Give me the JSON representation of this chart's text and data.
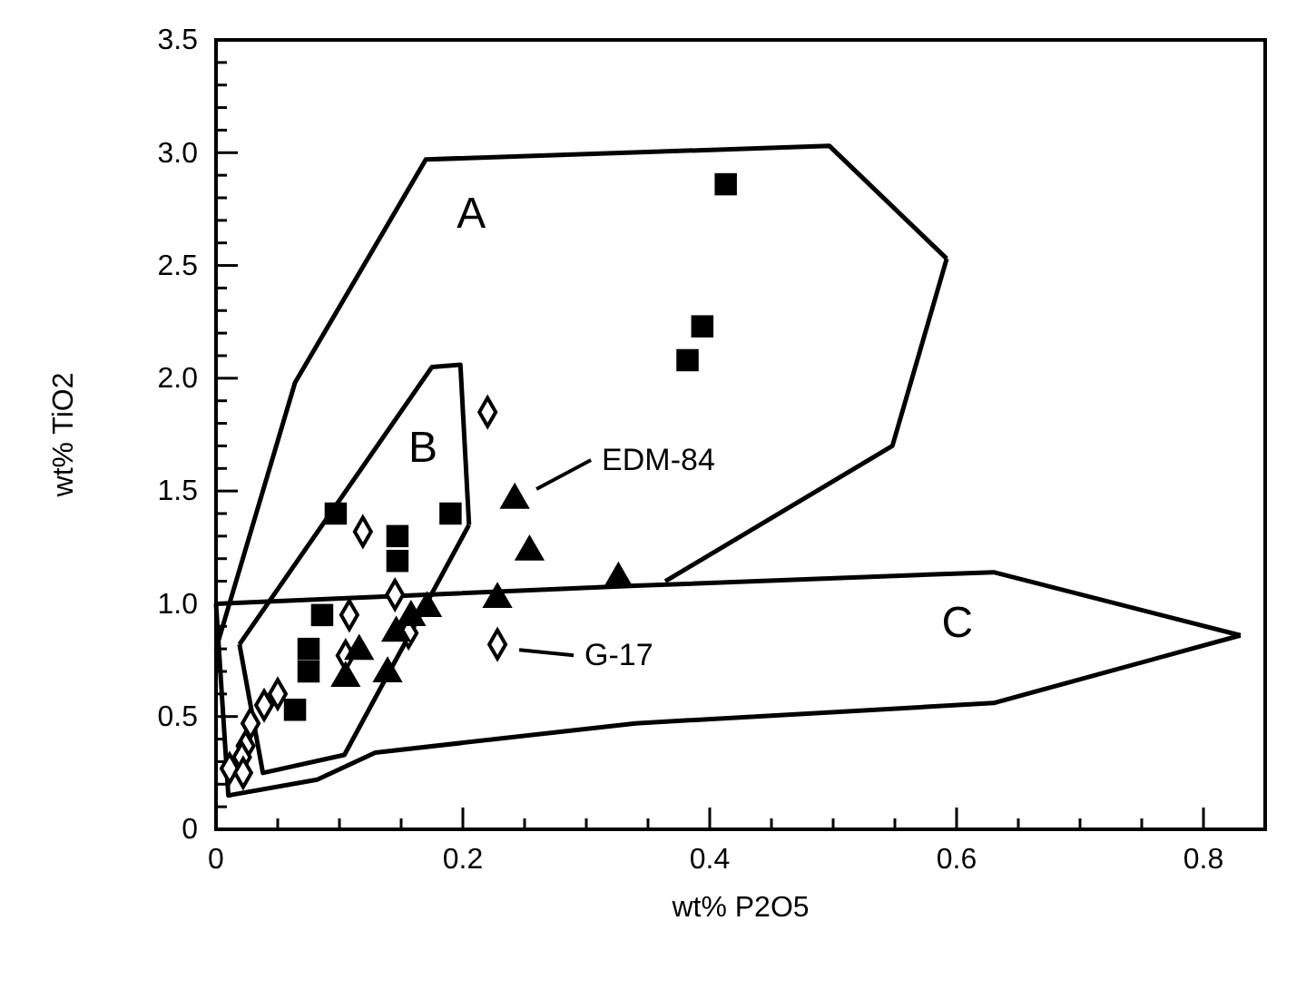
{
  "chart_data": {
    "type": "scatter",
    "xlabel": "wt% P2O5",
    "ylabel": "wt% TiO2",
    "xlim": [
      0,
      0.85
    ],
    "ylim": [
      0,
      3.5
    ],
    "xticks": [
      0,
      {
        "value": 0.05,
        "label": null
      },
      {
        "value": 0.1,
        "label": null
      },
      {
        "value": 0.15,
        "label": null
      },
      0.2,
      {
        "value": 0.25,
        "label": null
      },
      {
        "value": 0.3,
        "label": null
      },
      {
        "value": 0.35,
        "label": null
      },
      0.4,
      {
        "value": 0.45,
        "label": null
      },
      {
        "value": 0.5,
        "label": null
      },
      {
        "value": 0.55,
        "label": null
      },
      0.6,
      {
        "value": 0.65,
        "label": null
      },
      {
        "value": 0.7,
        "label": null
      },
      {
        "value": 0.75,
        "label": null
      },
      0.8
    ],
    "yticks": [
      0,
      {
        "value": 0.1,
        "label": null
      },
      {
        "value": 0.2,
        "label": null
      },
      {
        "value": 0.3,
        "label": null
      },
      {
        "value": 0.4,
        "label": null
      },
      0.5,
      {
        "value": 0.6,
        "label": null
      },
      {
        "value": 0.7,
        "label": null
      },
      {
        "value": 0.8,
        "label": null
      },
      {
        "value": 0.9,
        "label": null
      },
      {
        "value": 1,
        "label": "1.0"
      },
      {
        "value": 1.1,
        "label": null
      },
      {
        "value": 1.2,
        "label": null
      },
      {
        "value": 1.3,
        "label": null
      },
      {
        "value": 1.4,
        "label": null
      },
      1.5,
      {
        "value": 1.6,
        "label": null
      },
      {
        "value": 1.7,
        "label": null
      },
      {
        "value": 1.8,
        "label": null
      },
      {
        "value": 1.9,
        "label": null
      },
      {
        "value": 2,
        "label": "2.0"
      },
      {
        "value": 2.1,
        "label": null
      },
      {
        "value": 2.2,
        "label": null
      },
      {
        "value": 2.3,
        "label": null
      },
      {
        "value": 2.4,
        "label": null
      },
      2.5,
      {
        "value": 2.6,
        "label": null
      },
      {
        "value": 2.7,
        "label": null
      },
      {
        "value": 2.8,
        "label": null
      },
      {
        "value": 2.9,
        "label": null
      },
      {
        "value": 3,
        "label": "3.0"
      },
      {
        "value": 3.1,
        "label": null
      },
      {
        "value": 3.2,
        "label": null
      },
      {
        "value": 3.3,
        "label": null
      },
      {
        "value": 3.4,
        "label": null
      },
      3.5
    ],
    "grid": false,
    "series": [
      {
        "type": "line",
        "marker": "none",
        "color": "#000000",
        "x": [
          0,
          0.064,
          0.17,
          0.497,
          0.592
        ],
        "values": [
          0.8,
          1.98,
          2.97,
          3.03,
          2.53
        ]
      },
      {
        "type": "line",
        "marker": "none",
        "color": "#000000",
        "x": [
          0.364,
          0.548,
          0.592
        ],
        "values": [
          1.1,
          1.7,
          2.53
        ]
      },
      {
        "type": "line",
        "marker": "none",
        "color": "#000000",
        "x": [
          0.019,
          0.175,
          0.198,
          0.205
        ],
        "values": [
          0.82,
          2.05,
          2.06,
          1.35
        ]
      },
      {
        "type": "line",
        "marker": "none",
        "color": "#000000",
        "x": [
          0.019,
          0.038,
          0.104,
          0.205
        ],
        "values": [
          0.82,
          0.25,
          0.33,
          1.35
        ]
      },
      {
        "type": "line",
        "marker": "none",
        "color": "#000000",
        "x": [
          0,
          0.34,
          0.63,
          0.83
        ],
        "values": [
          1.0,
          1.08,
          1.14,
          0.86
        ]
      },
      {
        "type": "line",
        "marker": "none",
        "color": "#000000",
        "x": [
          0,
          0.01,
          0.082,
          0.129,
          0.34,
          0.63,
          0.83
        ],
        "values": [
          1.0,
          0.15,
          0.22,
          0.34,
          0.47,
          0.56,
          0.86
        ]
      },
      {
        "marker": "square",
        "color": "#000000",
        "x": [
          0.097,
          0.19,
          0.147,
          0.147,
          0.086,
          0.075,
          0.075,
          0.064,
          0.413,
          0.394,
          0.382
        ],
        "values": [
          1.4,
          1.4,
          1.3,
          1.19,
          0.95,
          0.8,
          0.7,
          0.53,
          2.86,
          2.23,
          2.08
        ]
      },
      {
        "marker": "diamond",
        "color": "#000000",
        "x": [
          0.22,
          0.119,
          0.145,
          0.108,
          0.105,
          0.156,
          0.228,
          0.05,
          0.039,
          0.028,
          0.024,
          0.021,
          0.011,
          0.022
        ],
        "values": [
          1.85,
          1.32,
          1.04,
          0.95,
          0.77,
          0.87,
          0.82,
          0.6,
          0.55,
          0.47,
          0.37,
          0.32,
          0.27,
          0.25
        ]
      },
      {
        "marker": "triangle",
        "color": "#000000",
        "x": [
          0.242,
          0.254,
          0.228,
          0.171,
          0.158,
          0.146,
          0.116,
          0.105,
          0.139,
          0.326
        ],
        "values": [
          1.46,
          1.23,
          1.02,
          0.98,
          0.94,
          0.87,
          0.79,
          0.67,
          0.69,
          1.11
        ]
      }
    ],
    "annotations": [
      "A",
      "B",
      "C",
      {
        "text": "EDM-84",
        "x": 0.242,
        "y": 1.46
      },
      {
        "text": "G-17",
        "x": 0.228,
        "y": 0.82
      }
    ]
  }
}
